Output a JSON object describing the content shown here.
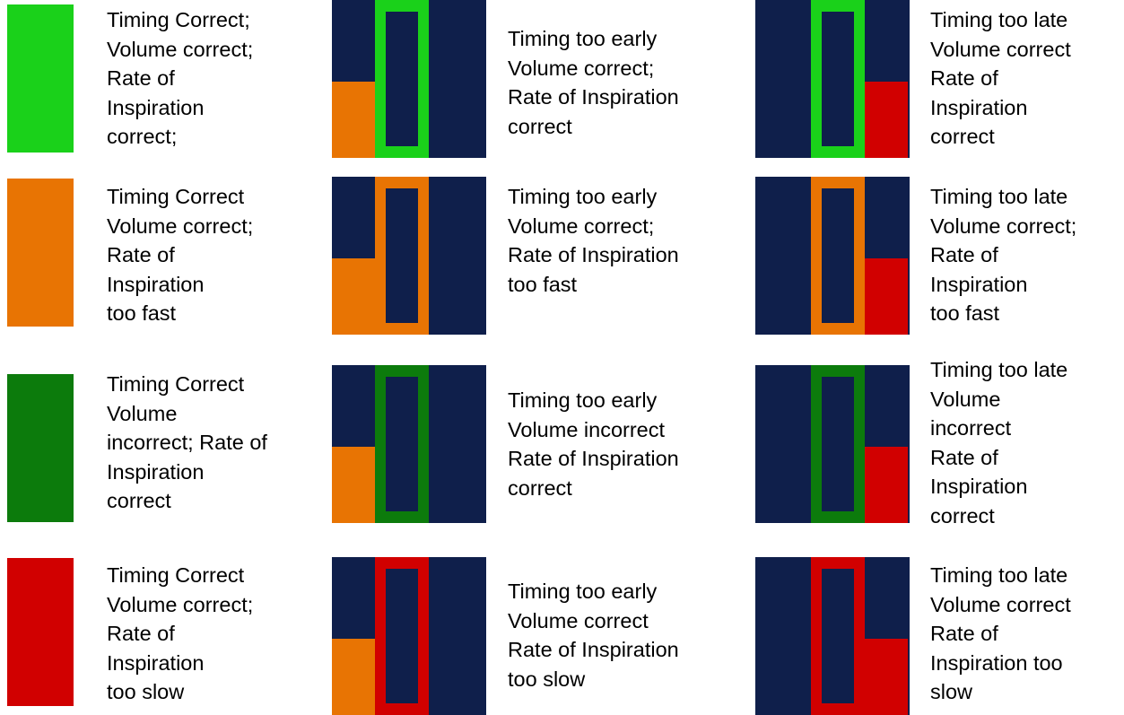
{
  "colors": {
    "correct": "#1ad11a",
    "too_fast": "#e87403",
    "volume_incorrect": "#0c7b0c",
    "too_slow": "#d10000",
    "panel_background": "#0f1f4b",
    "early_bar": "#e87403",
    "late_bar": "#d10000"
  },
  "rows": [
    {
      "state": "correct",
      "correct_timing": [
        "Timing Correct;",
        "Volume correct;",
        "Rate of",
        "Inspiration",
        "correct;"
      ],
      "too_early": [
        "Timing too early",
        "Volume correct;",
        "Rate of Inspiration",
        "correct"
      ],
      "too_late": [
        "Timing too late",
        "Volume correct",
        "Rate of",
        "Inspiration",
        "correct"
      ]
    },
    {
      "state": "too_fast",
      "correct_timing": [
        "Timing Correct",
        "Volume correct;",
        "Rate of",
        "Inspiration",
        "too fast"
      ],
      "too_early": [
        "Timing too early",
        "Volume correct;",
        "Rate of Inspiration",
        "too fast"
      ],
      "too_late": [
        "Timing too late",
        "Volume correct;",
        "Rate of",
        "Inspiration",
        "too fast"
      ]
    },
    {
      "state": "volume_incorrect",
      "correct_timing": [
        "Timing Correct",
        "Volume",
        "incorrect; Rate of",
        "Inspiration",
        "correct"
      ],
      "too_early": [
        "Timing too early",
        "Volume incorrect",
        "Rate of Inspiration",
        "correct"
      ],
      "too_late": [
        "Timing too late",
        "Volume",
        "incorrect",
        "Rate of",
        "Inspiration",
        "correct"
      ]
    },
    {
      "state": "too_slow",
      "correct_timing": [
        "Timing Correct",
        "Volume correct;",
        "Rate of",
        "Inspiration",
        "too slow"
      ],
      "too_early": [
        "Timing too early",
        "Volume correct",
        "Rate of Inspiration",
        "too slow"
      ],
      "too_late": [
        "Timing too late",
        "Volume correct",
        "Rate of",
        "Inspiration too",
        "slow"
      ]
    }
  ]
}
